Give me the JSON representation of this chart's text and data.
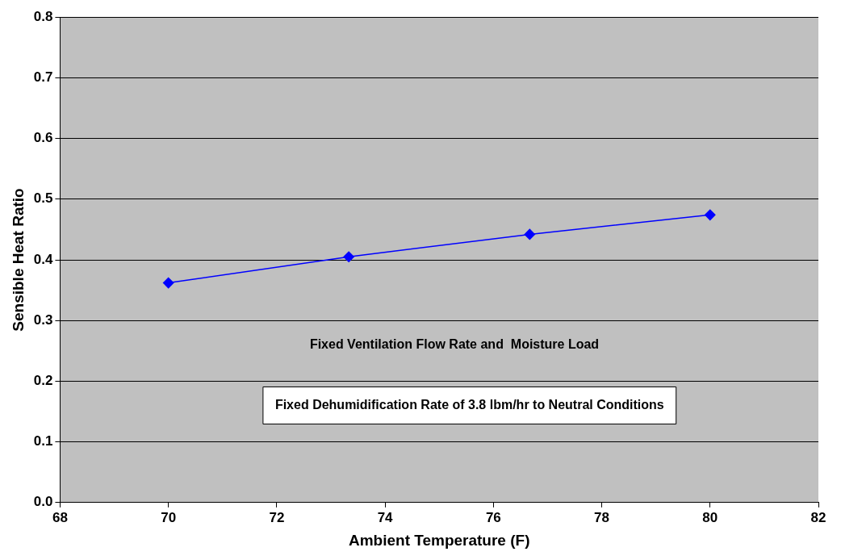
{
  "chart_data": {
    "type": "line",
    "xlabel": "Ambient Temperature (F)",
    "ylabel": "Sensible Heat Ratio",
    "x": [
      70,
      73.33,
      76.67,
      80
    ],
    "series": [
      {
        "color": "#0000ff",
        "values": [
          0.362,
          0.405,
          0.442,
          0.474
        ]
      }
    ],
    "xlim": [
      68,
      82
    ],
    "xticks": [
      68,
      70,
      72,
      74,
      76,
      78,
      80,
      82
    ],
    "ylim": [
      0,
      0.8
    ],
    "yticks": [
      {
        "value": 0,
        "label": "0.0"
      },
      {
        "value": 0.1,
        "label": "0.1"
      },
      {
        "value": 0.2,
        "label": "0.2"
      },
      {
        "value": 0.3,
        "label": "0.3"
      },
      {
        "value": 0.4,
        "label": "0.4"
      },
      {
        "value": 0.5,
        "label": "0.5"
      },
      {
        "value": 0.6,
        "label": "0.6"
      },
      {
        "value": 0.7,
        "label": "0.7"
      },
      {
        "value": 0.8,
        "label": "0.8"
      }
    ],
    "grid": "y",
    "marker": "diamond",
    "line_style": "solid",
    "annotations": [
      "Fixed Ventilation Flow Rate and  Moisture Load",
      "Fixed Dehumidification Rate of 3.8 lbm/hr to Neutral Conditions"
    ]
  }
}
